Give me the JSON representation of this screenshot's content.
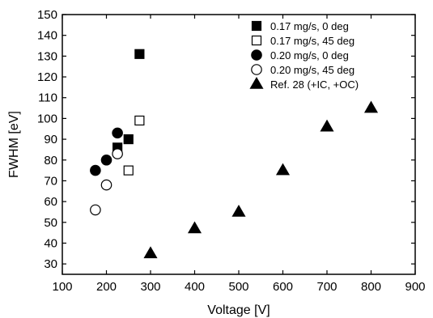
{
  "chart_data": {
    "type": "scatter",
    "xlabel": "Voltage [V]",
    "ylabel": "FWHM [eV]",
    "xlim": [
      100,
      900
    ],
    "ylim": [
      25,
      150
    ],
    "xticks": [
      100,
      200,
      300,
      400,
      500,
      600,
      700,
      800,
      900
    ],
    "yticks": [
      30,
      40,
      50,
      60,
      70,
      80,
      90,
      100,
      110,
      120,
      130,
      140,
      150
    ],
    "grid": false,
    "legend_position": "top-right",
    "series": [
      {
        "name": "0.17 mg/s, 0 deg",
        "marker": "square",
        "filled": true,
        "points": [
          [
            225,
            86
          ],
          [
            250,
            90
          ],
          [
            275,
            131
          ]
        ]
      },
      {
        "name": "0.17 mg/s, 45 deg",
        "marker": "square",
        "filled": false,
        "points": [
          [
            250,
            75
          ],
          [
            275,
            99
          ]
        ]
      },
      {
        "name": "0.20 mg/s, 0 deg",
        "marker": "circle",
        "filled": true,
        "points": [
          [
            175,
            75
          ],
          [
            200,
            80
          ],
          [
            225,
            93
          ]
        ]
      },
      {
        "name": "0.20 mg/s, 45 deg",
        "marker": "circle",
        "filled": false,
        "points": [
          [
            175,
            56
          ],
          [
            200,
            68
          ],
          [
            225,
            83
          ]
        ]
      },
      {
        "name": "Ref. 28 (+IC, +OC)",
        "marker": "triangle",
        "filled": true,
        "points": [
          [
            300,
            35
          ],
          [
            400,
            47
          ],
          [
            500,
            55
          ],
          [
            600,
            75
          ],
          [
            700,
            96
          ],
          [
            800,
            105
          ]
        ]
      }
    ]
  }
}
